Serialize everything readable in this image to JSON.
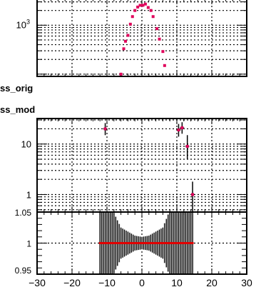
{
  "histograms": {
    "orig_label": "ss_orig",
    "mod_label": "ss_mod"
  },
  "chart_data": [
    {
      "type": "scatter",
      "title": "",
      "xlabel": "",
      "ylabel": "",
      "log_y": true,
      "grid": true,
      "visible_tick_labels": [
        "10³"
      ],
      "color": "#e0005a",
      "points": [
        {
          "x": -6.0,
          "y": 100
        },
        {
          "x": -5.2,
          "y": 330
        },
        {
          "x": -4.7,
          "y": 470
        },
        {
          "x": -4.0,
          "y": 620
        },
        {
          "x": -3.3,
          "y": 1050
        },
        {
          "x": -2.7,
          "y": 1500
        },
        {
          "x": -2.0,
          "y": 2000
        },
        {
          "x": -1.2,
          "y": 2350
        },
        {
          "x": -0.5,
          "y": 2550
        },
        {
          "x": 0.3,
          "y": 2550
        },
        {
          "x": 1.0,
          "y": 2700
        },
        {
          "x": 1.8,
          "y": 2300
        },
        {
          "x": 2.6,
          "y": 2000
        },
        {
          "x": 3.2,
          "y": 1500
        },
        {
          "x": 4.3,
          "y": 850
        },
        {
          "x": 5.0,
          "y": 520
        },
        {
          "x": 6.0,
          "y": 290
        },
        {
          "x": 6.5,
          "y": 150
        }
      ]
    },
    {
      "type": "scatter",
      "title": "",
      "xlabel": "",
      "ylabel": "",
      "log_y": true,
      "grid": true,
      "x_ticks": [
        -30,
        -20,
        -10,
        0,
        10,
        20,
        30
      ],
      "y_ticks": [
        1,
        10
      ],
      "color": "#e0005a",
      "points": [
        {
          "x": -10.5,
          "y": 20,
          "ylow": 15,
          "yhigh": 26
        },
        {
          "x": 10.5,
          "y": 19,
          "ylow": 14,
          "yhigh": 25
        },
        {
          "x": 11.5,
          "y": 21,
          "ylow": 16,
          "yhigh": 27
        },
        {
          "x": 13.0,
          "y": 9,
          "ylow": 5,
          "yhigh": 15
        },
        {
          "x": 14.5,
          "y": 1,
          "ylow": 0.3,
          "yhigh": 1.8
        }
      ]
    },
    {
      "type": "scatter",
      "title": "",
      "xlabel": "",
      "ylabel": "",
      "grid": true,
      "x_ticks": [
        -30,
        -20,
        -10,
        0,
        10,
        20,
        30
      ],
      "y_ticks": [
        "1.05",
        "1",
        "0.95"
      ],
      "ylim": [
        0.95,
        1.05
      ],
      "color": "#e00000",
      "points_y_all": 1.0,
      "x_range": [
        -12,
        14.5
      ],
      "bin_width": 0.5,
      "error_halfwidth_profile": [
        {
          "x": -12,
          "e": 0.06
        },
        {
          "x": -9,
          "e": 0.06
        },
        {
          "x": -6,
          "e": 0.025
        },
        {
          "x": -2,
          "e": 0.012
        },
        {
          "x": 0,
          "e": 0.01
        },
        {
          "x": 2,
          "e": 0.012
        },
        {
          "x": 6,
          "e": 0.025
        },
        {
          "x": 8.5,
          "e": 0.06
        },
        {
          "x": 14.5,
          "e": 0.06
        }
      ]
    }
  ]
}
